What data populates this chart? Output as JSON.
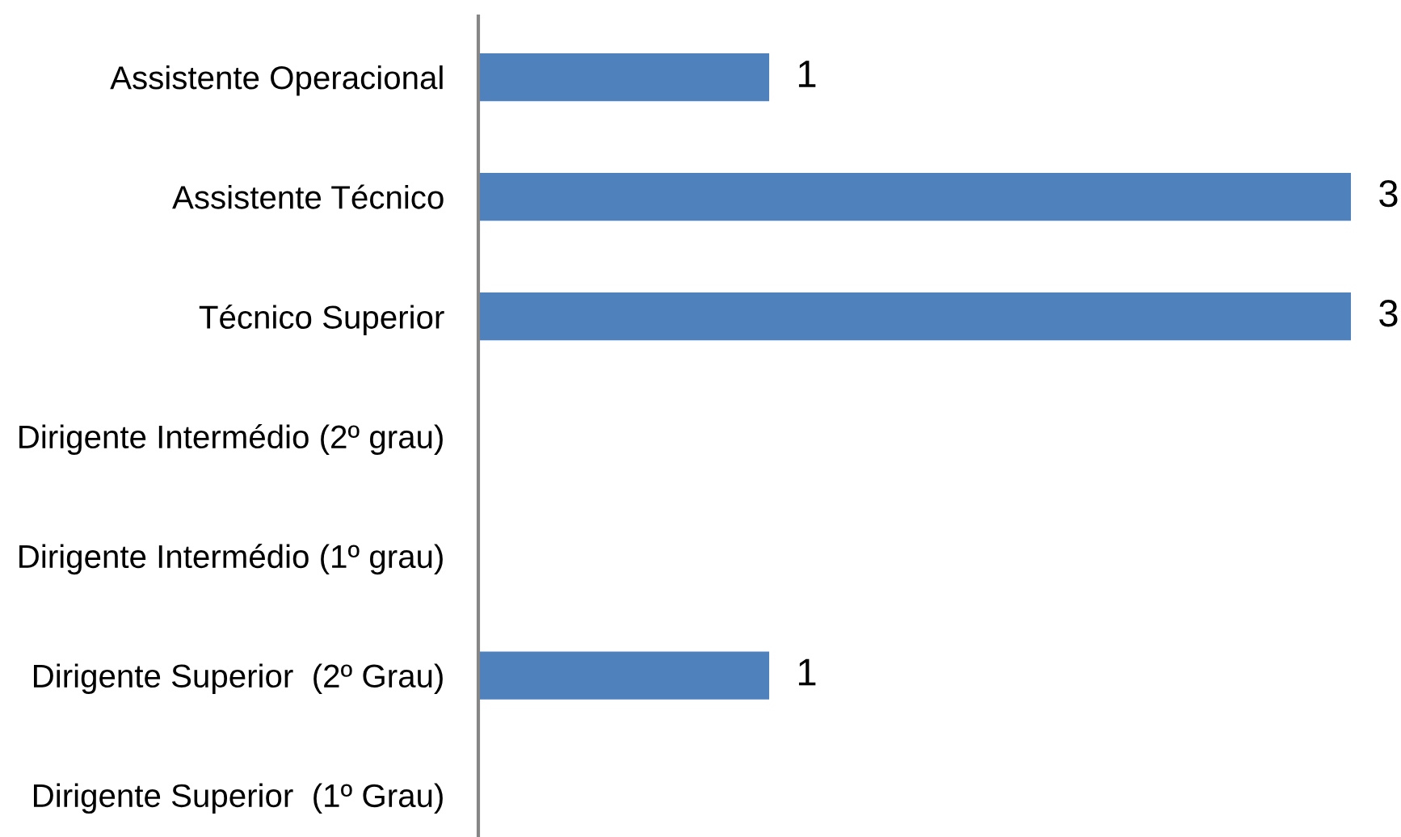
{
  "chart_data": {
    "type": "bar",
    "orientation": "horizontal",
    "categories": [
      "Assistente Operacional",
      "Assistente Técnico",
      "Técnico Superior",
      "Dirigente Intermédio (2º grau)",
      "Dirigente Intermédio (1º grau)",
      "Dirigente Superior  (2º Grau)",
      "Dirigente Superior  (1º Grau)"
    ],
    "values": [
      1,
      3,
      3,
      null,
      null,
      1,
      null
    ],
    "color": "#4f81bd",
    "xlim": [
      0,
      3
    ],
    "data_labels": true,
    "tick_labels": "y"
  }
}
